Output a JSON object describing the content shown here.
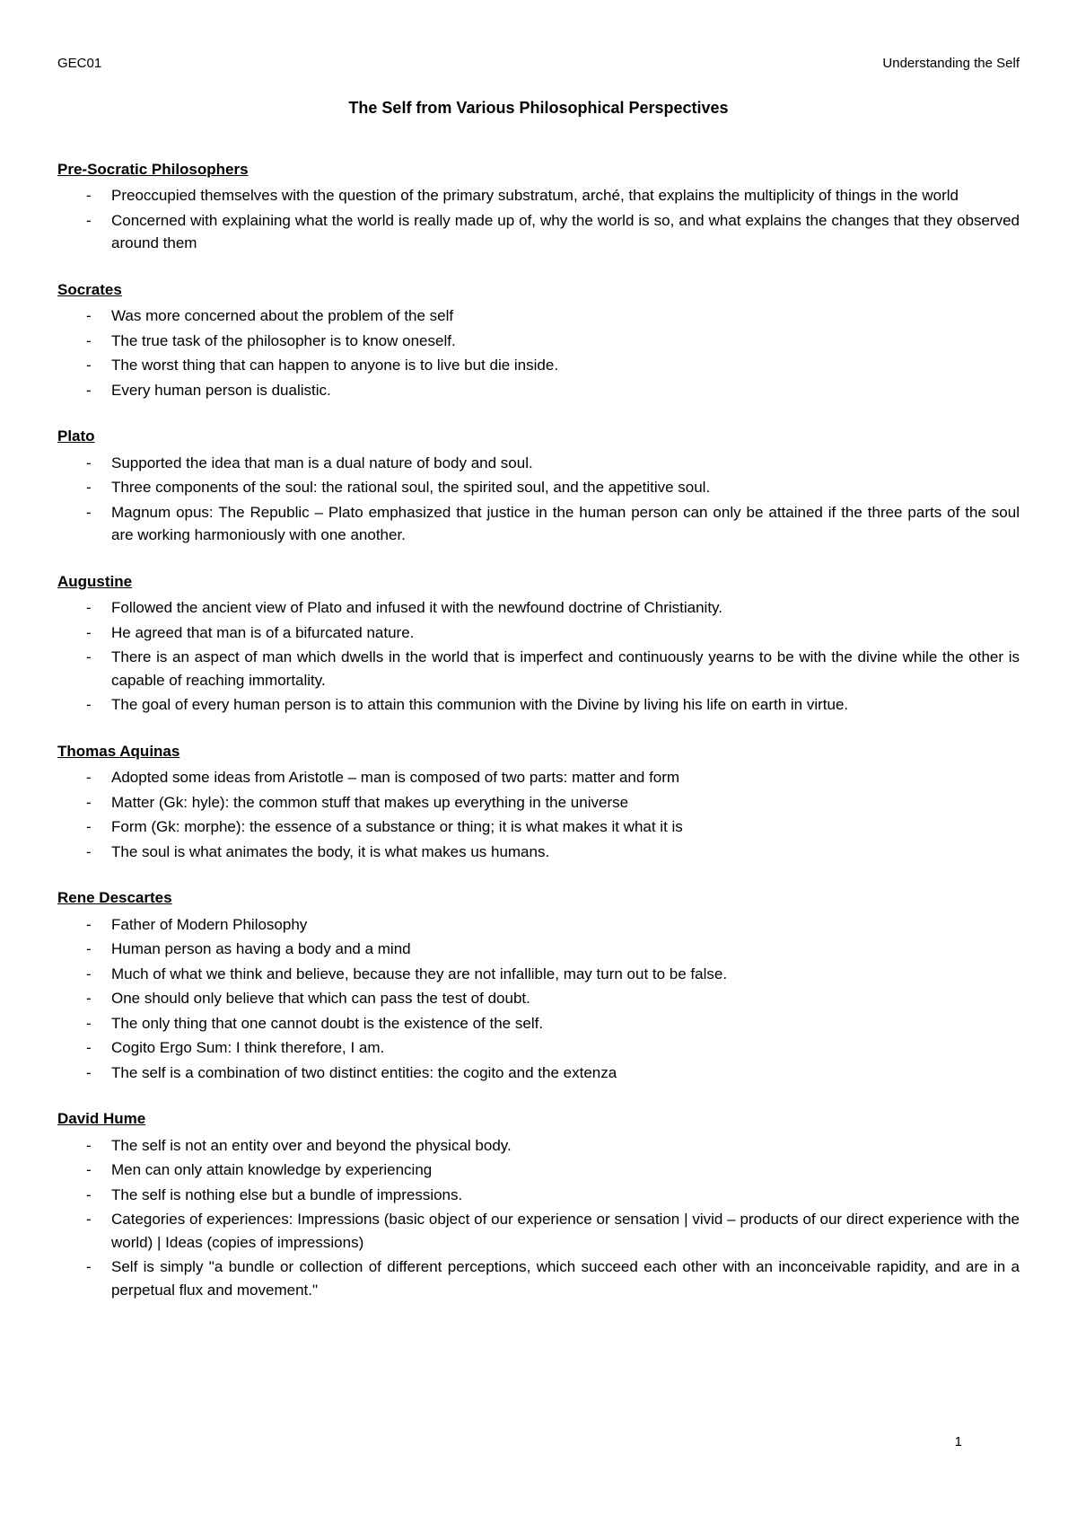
{
  "header": {
    "left": "GEC01",
    "right": "Understanding the Self"
  },
  "title": "The Self from Various Philosophical Perspectives",
  "sections": [
    {
      "heading": "Pre-Socratic Philosophers",
      "items": [
        "Preoccupied themselves with the question of the primary substratum, arché, that explains the multiplicity of things in the world",
        "Concerned with explaining what the world is really made up of, why the world is so, and what explains the changes that they observed around them"
      ]
    },
    {
      "heading": "Socrates",
      "items": [
        "Was more concerned about the problem of the self",
        "The true task of the philosopher is to know oneself.",
        "The worst thing that can happen to anyone is to live but die inside.",
        "Every human person is dualistic."
      ]
    },
    {
      "heading": "Plato",
      "items": [
        "Supported the idea that man is a dual nature of body and soul.",
        "Three components of the soul: the rational soul, the spirited soul, and the appetitive soul.",
        "Magnum opus: The Republic – Plato emphasized that justice in the human person can only be attained if the three parts of the soul are working harmoniously with one another."
      ]
    },
    {
      "heading": "Augustine",
      "items": [
        "Followed the ancient view of Plato and infused it with the newfound doctrine of Christianity.",
        "He agreed that man is of a bifurcated nature.",
        "There is an aspect of man which dwells in the world that is imperfect and continuously yearns to be with the divine while the other is capable of reaching immortality.",
        "The goal of every human person is to attain this communion with the Divine by living his life on earth in virtue."
      ]
    },
    {
      "heading": "Thomas Aquinas",
      "items": [
        "Adopted some ideas from Aristotle – man is composed of two parts: matter and form",
        "Matter (Gk: hyle): the common stuff that makes up everything in the universe",
        "Form (Gk: morphe): the essence of a substance or thing; it is what makes it what it is",
        "The soul is what animates the body, it is what makes us humans."
      ]
    },
    {
      "heading": "Rene Descartes",
      "items": [
        "Father of Modern Philosophy",
        "Human person as having a body and a mind",
        "Much of what we think and believe, because they are not infallible, may turn out to be false.",
        "One should only believe that which can pass the test of doubt.",
        "The only thing that one cannot doubt is the existence of the self.",
        "Cogito Ergo Sum: I think therefore, I am.",
        "The self is a combination of two distinct entities: the cogito and the extenza"
      ]
    },
    {
      "heading": "David Hume",
      "items": [
        "The self is not an entity over and beyond the physical body.",
        "Men can only attain knowledge by experiencing",
        "The self is nothing else but a bundle of impressions.",
        "Categories of experiences: Impressions (basic object of our experience or sensation | vivid – products of our direct experience with the world) | Ideas (copies of impressions)",
        "Self is simply \"a bundle or collection of different perceptions, which succeed each other with an inconceivable rapidity, and are in a perpetual flux and movement.\""
      ]
    }
  ],
  "pageNumber": "1"
}
